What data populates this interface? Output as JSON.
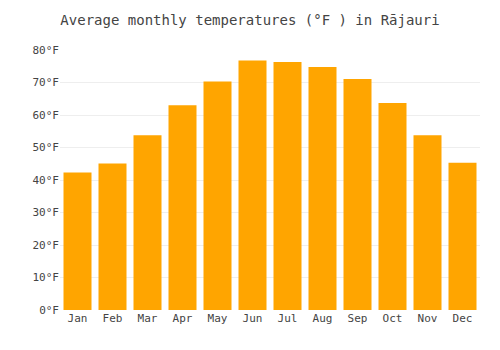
{
  "chart_data": {
    "type": "bar",
    "title": "Average monthly temperatures (°F ) in Rājauri",
    "categories": [
      "Jan",
      "Feb",
      "Mar",
      "Apr",
      "May",
      "Jun",
      "Jul",
      "Aug",
      "Sep",
      "Oct",
      "Nov",
      "Dec"
    ],
    "values": [
      42.3,
      45.1,
      53.8,
      63.0,
      70.3,
      76.8,
      76.3,
      74.8,
      71.1,
      63.7,
      53.8,
      45.3
    ],
    "color": "#FFA500",
    "ylim": [
      0,
      80
    ],
    "yticks": [
      {
        "value": 0,
        "label": "0°F"
      },
      {
        "value": 10,
        "label": "10°F"
      },
      {
        "value": 20,
        "label": "20°F"
      },
      {
        "value": 30,
        "label": "30°F"
      },
      {
        "value": 40,
        "label": "40°F"
      },
      {
        "value": 50,
        "label": "50°F"
      },
      {
        "value": 60,
        "label": "60°F"
      },
      {
        "value": 70,
        "label": "70°F"
      },
      {
        "value": 80,
        "label": "80°F"
      }
    ],
    "grid": true
  }
}
